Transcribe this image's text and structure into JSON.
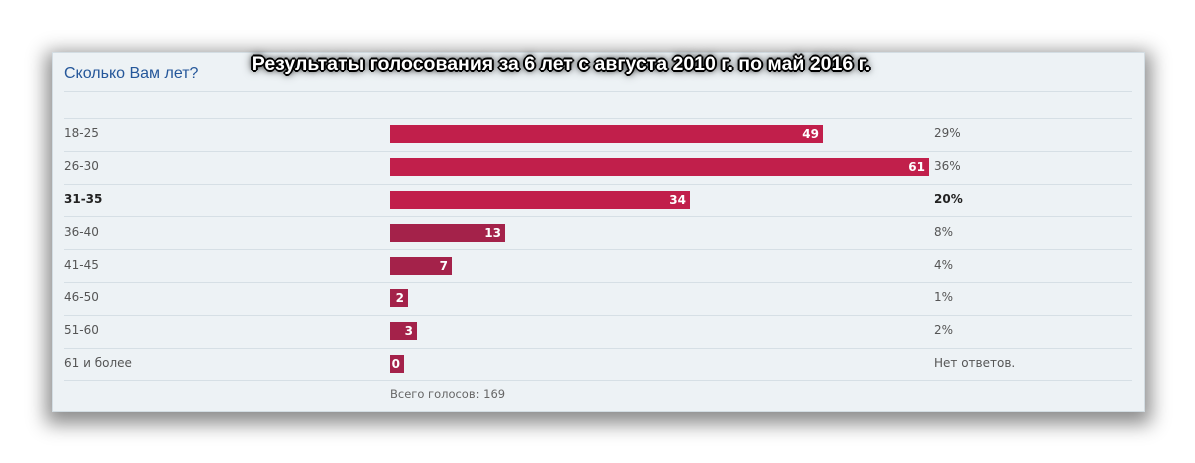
{
  "poll": {
    "question": "Сколько Вам лет?",
    "overlay_title": "Результаты голосования за 6 лет с августа 2010 г. по май 2016 г.",
    "total_label": "Всего голосов: 169",
    "bar_color": "#c11f4b",
    "bar_color_alt": "#a4224a"
  },
  "chart_data": {
    "type": "bar",
    "orientation": "horizontal",
    "title": "Сколько Вам лет?",
    "categories": [
      "18-25",
      "26-30",
      "31-35",
      "36-40",
      "41-45",
      "46-50",
      "51-60",
      "61 и более"
    ],
    "values": [
      49,
      61,
      34,
      13,
      7,
      2,
      3,
      0
    ],
    "percent_labels": [
      "29%",
      "36%",
      "20%",
      "8%",
      "4%",
      "1%",
      "2%",
      "Нет ответов."
    ],
    "highlighted": [
      false,
      false,
      true,
      false,
      false,
      false,
      false,
      false
    ],
    "max_value": 61,
    "total": 169
  }
}
